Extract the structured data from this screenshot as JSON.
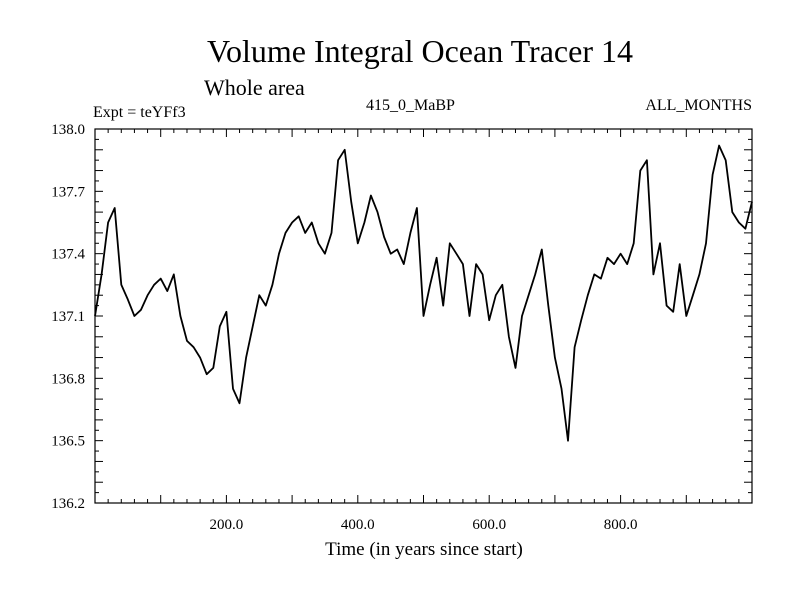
{
  "chart_data": {
    "type": "line",
    "title": "Volume Integral Ocean Tracer 14",
    "subtitle": "Whole area",
    "annotations": {
      "experiment": "Expt = teYFf3",
      "period": "415_0_MaBP",
      "months": "ALL_MONTHS"
    },
    "xlabel": "Time (in years since start)",
    "ylabel": "",
    "xlim": [
      0,
      1000
    ],
    "ylim": [
      136.2,
      138.0
    ],
    "xticks": [
      200,
      400,
      600,
      800
    ],
    "xtick_labels": [
      "200.0",
      "400.0",
      "600.0",
      "800.0"
    ],
    "yticks": [
      136.2,
      136.5,
      136.8,
      137.1,
      137.4,
      137.7,
      138.0
    ],
    "ytick_labels": [
      "136.2",
      "136.5",
      "136.8",
      "137.1",
      "137.4",
      "137.7",
      "138.0"
    ],
    "grid": false,
    "series": [
      {
        "name": "Tracer 14",
        "x": [
          0,
          10,
          20,
          30,
          40,
          50,
          60,
          70,
          80,
          90,
          100,
          110,
          120,
          130,
          140,
          150,
          160,
          170,
          180,
          190,
          200,
          210,
          220,
          230,
          240,
          250,
          260,
          270,
          280,
          290,
          300,
          310,
          320,
          330,
          340,
          350,
          360,
          370,
          380,
          390,
          400,
          410,
          420,
          430,
          440,
          450,
          460,
          470,
          480,
          490,
          500,
          510,
          520,
          530,
          540,
          550,
          560,
          570,
          580,
          590,
          600,
          610,
          620,
          630,
          640,
          650,
          660,
          670,
          680,
          690,
          700,
          710,
          720,
          730,
          740,
          750,
          760,
          770,
          780,
          790,
          800,
          810,
          820,
          830,
          840,
          850,
          860,
          870,
          880,
          890,
          900,
          910,
          920,
          930,
          940,
          950,
          960,
          970,
          980,
          990,
          1000
        ],
        "values": [
          137.1,
          137.3,
          137.55,
          137.62,
          137.25,
          137.18,
          137.1,
          137.13,
          137.2,
          137.25,
          137.28,
          137.22,
          137.3,
          137.1,
          136.98,
          136.95,
          136.9,
          136.82,
          136.85,
          137.05,
          137.12,
          136.75,
          136.68,
          136.9,
          137.05,
          137.2,
          137.15,
          137.25,
          137.4,
          137.5,
          137.55,
          137.58,
          137.5,
          137.55,
          137.45,
          137.4,
          137.5,
          137.85,
          137.9,
          137.65,
          137.45,
          137.55,
          137.68,
          137.6,
          137.48,
          137.4,
          137.42,
          137.35,
          137.5,
          137.62,
          137.1,
          137.25,
          137.38,
          137.15,
          137.45,
          137.4,
          137.35,
          137.1,
          137.35,
          137.3,
          137.08,
          137.2,
          137.25,
          137.0,
          136.85,
          137.1,
          137.2,
          137.3,
          137.42,
          137.15,
          136.9,
          136.75,
          136.5,
          136.95,
          137.08,
          137.2,
          137.3,
          137.28,
          137.38,
          137.35,
          137.4,
          137.35,
          137.45,
          137.8,
          137.85,
          137.3,
          137.45,
          137.15,
          137.12,
          137.35,
          137.1,
          137.2,
          137.3,
          137.45,
          137.78,
          137.92,
          137.85,
          137.6,
          137.55,
          137.52,
          137.65
        ]
      }
    ]
  }
}
